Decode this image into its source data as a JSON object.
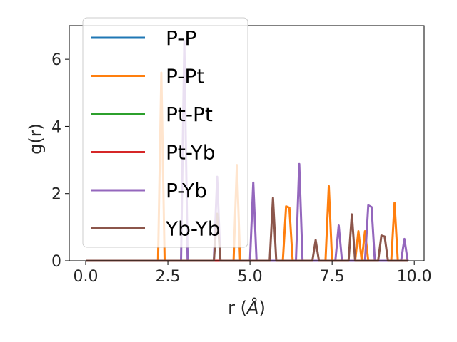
{
  "chart_data": {
    "type": "line",
    "xlabel": "r (",
    "xlabel_unit": "Å",
    "xlabel_close": ")",
    "ylabel": "g(r)",
    "xlim": [
      -0.5,
      10.3
    ],
    "ylim": [
      0,
      7
    ],
    "x_ticks": [
      0.0,
      2.5,
      5.0,
      7.5,
      10.0
    ],
    "x_tick_labels": [
      "0.0",
      "2.5",
      "5.0",
      "7.5",
      "10.0"
    ],
    "y_ticks": [
      0,
      2,
      4,
      6
    ],
    "y_tick_labels": [
      "0",
      "2",
      "4",
      "6"
    ],
    "grid": false,
    "legend_position": "top-left",
    "series": [
      {
        "name": "P-P",
        "color": "#1f77b4",
        "points": [
          [
            0,
            0
          ],
          [
            9.8,
            0
          ]
        ]
      },
      {
        "name": "P-Pt",
        "color": "#ff7f0e",
        "points": [
          [
            0,
            0
          ],
          [
            2.2,
            0
          ],
          [
            2.3,
            5.6
          ],
          [
            2.4,
            0
          ],
          [
            4.5,
            0
          ],
          [
            4.6,
            2.85
          ],
          [
            4.7,
            0
          ],
          [
            6.0,
            0
          ],
          [
            6.1,
            1.62
          ],
          [
            6.2,
            1.58
          ],
          [
            6.3,
            0
          ],
          [
            7.3,
            0
          ],
          [
            7.4,
            2.22
          ],
          [
            7.5,
            0
          ],
          [
            8.2,
            0
          ],
          [
            8.3,
            0.88
          ],
          [
            8.4,
            0
          ],
          [
            8.5,
            0.88
          ],
          [
            8.6,
            0
          ],
          [
            9.3,
            0
          ],
          [
            9.4,
            1.72
          ],
          [
            9.5,
            0
          ],
          [
            9.8,
            0
          ]
        ]
      },
      {
        "name": "Pt-Pt",
        "color": "#2ca02c",
        "points": [
          [
            0,
            0
          ],
          [
            9.8,
            0
          ]
        ]
      },
      {
        "name": "Pt-Yb",
        "color": "#d62728",
        "points": [
          [
            0,
            0
          ],
          [
            9.8,
            0
          ]
        ]
      },
      {
        "name": "P-Yb",
        "color": "#9467bd",
        "points": [
          [
            0,
            0
          ],
          [
            2.9,
            0
          ],
          [
            3.0,
            6.55
          ],
          [
            3.1,
            0
          ],
          [
            3.9,
            0
          ],
          [
            4.0,
            2.5
          ],
          [
            4.1,
            0
          ],
          [
            5.0,
            0
          ],
          [
            5.1,
            2.33
          ],
          [
            5.2,
            0
          ],
          [
            6.4,
            0
          ],
          [
            6.5,
            2.88
          ],
          [
            6.6,
            0
          ],
          [
            7.6,
            0
          ],
          [
            7.7,
            1.05
          ],
          [
            7.8,
            0
          ],
          [
            8.5,
            0
          ],
          [
            8.6,
            1.65
          ],
          [
            8.7,
            1.6
          ],
          [
            8.8,
            0
          ],
          [
            9.6,
            0
          ],
          [
            9.7,
            0.65
          ],
          [
            9.8,
            0
          ]
        ]
      },
      {
        "name": "Yb-Yb",
        "color": "#8c564b",
        "points": [
          [
            0,
            0
          ],
          [
            3.9,
            0
          ],
          [
            4.0,
            1.4
          ],
          [
            4.1,
            0
          ],
          [
            5.6,
            0
          ],
          [
            5.7,
            1.87
          ],
          [
            5.8,
            0
          ],
          [
            6.9,
            0
          ],
          [
            7.0,
            0.62
          ],
          [
            7.1,
            0
          ],
          [
            8.0,
            0
          ],
          [
            8.1,
            1.38
          ],
          [
            8.2,
            0
          ],
          [
            8.9,
            0
          ],
          [
            9.0,
            0.75
          ],
          [
            9.1,
            0.72
          ],
          [
            9.2,
            0
          ],
          [
            9.8,
            0
          ]
        ]
      }
    ]
  }
}
